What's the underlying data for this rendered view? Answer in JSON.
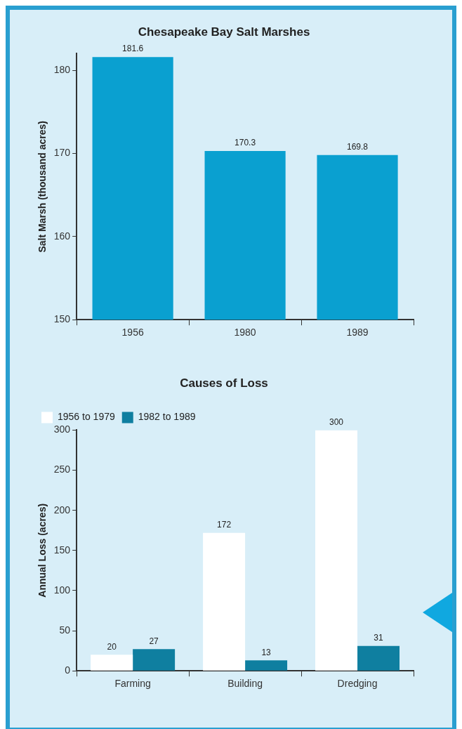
{
  "chart_data": [
    {
      "type": "bar",
      "title": "Chesapeake Bay Salt Marshes",
      "ylabel": "Salt Marsh (thousand acres)",
      "categories": [
        "1956",
        "1980",
        "1989"
      ],
      "values": [
        181.6,
        170.3,
        169.8
      ],
      "color": "#0aa0d0",
      "ylim": [
        150,
        182
      ],
      "yticks": [
        150,
        160,
        170,
        180
      ],
      "data_labels": true
    },
    {
      "type": "bar",
      "title": "Causes of Loss",
      "ylabel": "Annual Loss (acres)",
      "categories": [
        "Farming",
        "Building",
        "Dredging"
      ],
      "series": [
        {
          "name": "1956 to 1979",
          "color": "#ffffff",
          "values": [
            20,
            172,
            300
          ]
        },
        {
          "name": "1982 to 1989",
          "color": "#0f7fa0",
          "values": [
            27,
            13,
            31
          ]
        }
      ],
      "ylim": [
        0,
        300
      ],
      "yticks": [
        0,
        50,
        100,
        150,
        200,
        250,
        300
      ],
      "data_labels": true,
      "legend": "top left"
    }
  ]
}
